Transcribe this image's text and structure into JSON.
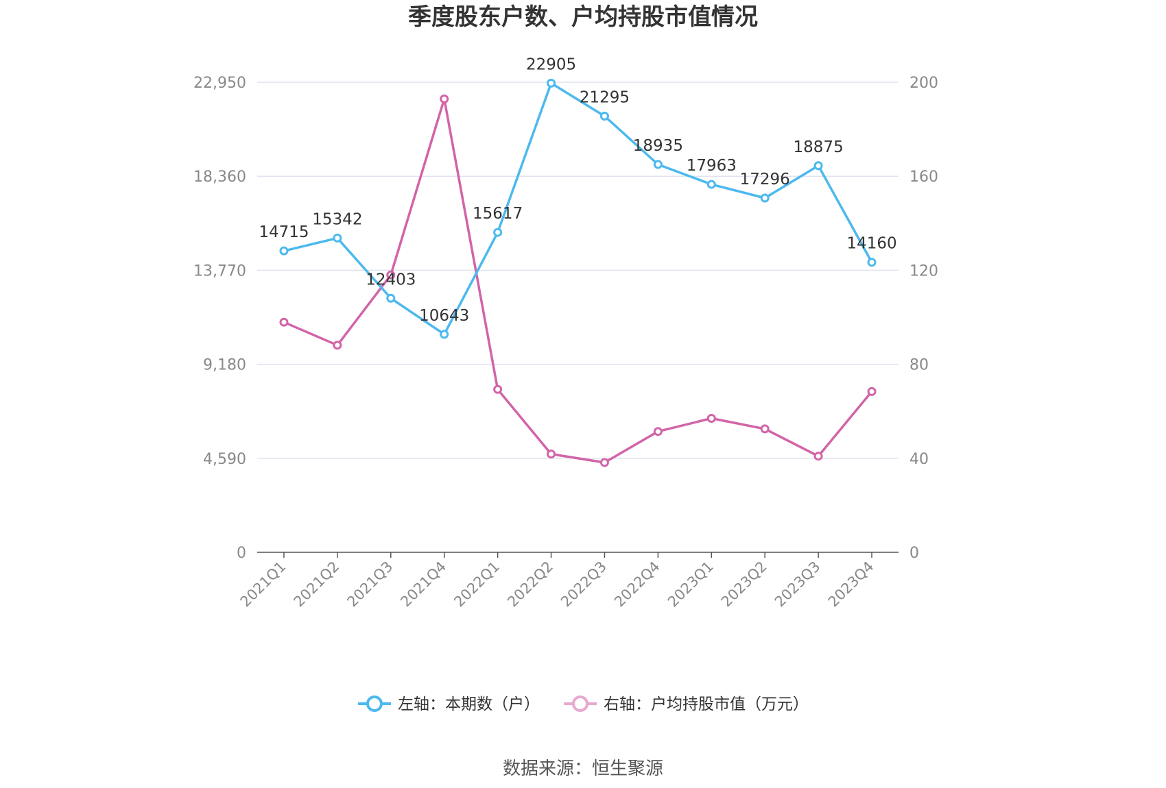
{
  "chart_data": {
    "type": "line",
    "title": "季度股东户数、户均持股市值情况",
    "categories": [
      "2021Q1",
      "2021Q2",
      "2021Q3",
      "2021Q4",
      "2022Q1",
      "2022Q2",
      "2022Q3",
      "2022Q4",
      "2023Q1",
      "2023Q2",
      "2023Q3",
      "2023Q4"
    ],
    "left_axis": {
      "ylim": [
        0,
        22950
      ],
      "ticks": [
        0,
        4590,
        9180,
        13770,
        18360,
        22950
      ],
      "tick_labels": [
        "0",
        "4,590",
        "9,180",
        "13,770",
        "18,360",
        "22,950"
      ]
    },
    "right_axis": {
      "ylim": [
        0,
        200
      ],
      "ticks": [
        0,
        40,
        80,
        120,
        160,
        200
      ],
      "tick_labels": [
        "0",
        "40",
        "80",
        "120",
        "160",
        "200"
      ]
    },
    "series": [
      {
        "name": "左轴：本期数（户）",
        "axis": "left",
        "color": "#4cb9ee",
        "values": [
          14715,
          15342,
          12403,
          10643,
          15617,
          22905,
          21295,
          18935,
          17963,
          17296,
          18875,
          14160
        ],
        "labels": [
          "14715",
          "15342",
          "12403",
          "10643",
          "15617",
          "22905",
          "21295",
          "18935",
          "17963",
          "17296",
          "18875",
          "14160"
        ]
      },
      {
        "name": "右轴：户均持股市值（万元）",
        "axis": "right",
        "color": "#d264a8",
        "values": [
          97.9,
          88.1,
          118.0,
          192.9,
          69.3,
          41.8,
          38.2,
          51.4,
          57.0,
          52.5,
          40.9,
          68.4
        ]
      }
    ],
    "legend_position": "bottom",
    "grid": true
  },
  "source_text": "数据来源：恒生聚源",
  "colors": {
    "left_series": "#4cb9ee",
    "right_series": "#d264a8",
    "legend_right_marker": "#e8a9d0",
    "grid": "#e0e3ee",
    "axis": "#555555"
  }
}
